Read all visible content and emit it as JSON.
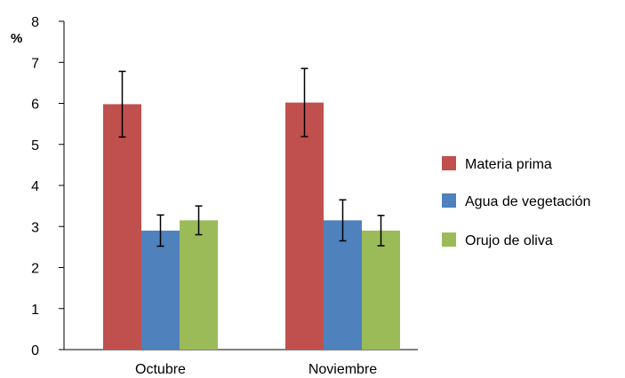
{
  "chart_data": {
    "type": "bar",
    "title": "",
    "xlabel": "",
    "ylabel": "%",
    "ylim": [
      0,
      8
    ],
    "yticks": [
      0,
      1,
      2,
      3,
      4,
      5,
      6,
      7,
      8
    ],
    "categories": [
      "Octubre",
      "Noviembre"
    ],
    "series": [
      {
        "name": "Materia prima",
        "color": "#c0504d",
        "values": [
          5.98,
          6.02
        ],
        "errors": [
          0.8,
          0.83
        ]
      },
      {
        "name": "Agua de vegetación",
        "color": "#4f81bd",
        "values": [
          2.9,
          3.15
        ],
        "errors": [
          0.38,
          0.5
        ]
      },
      {
        "name": "Orujo de oliva",
        "color": "#9bbb59",
        "values": [
          3.15,
          2.9
        ],
        "errors": [
          0.35,
          0.37
        ]
      }
    ],
    "grid": false,
    "legend_position": "right"
  }
}
